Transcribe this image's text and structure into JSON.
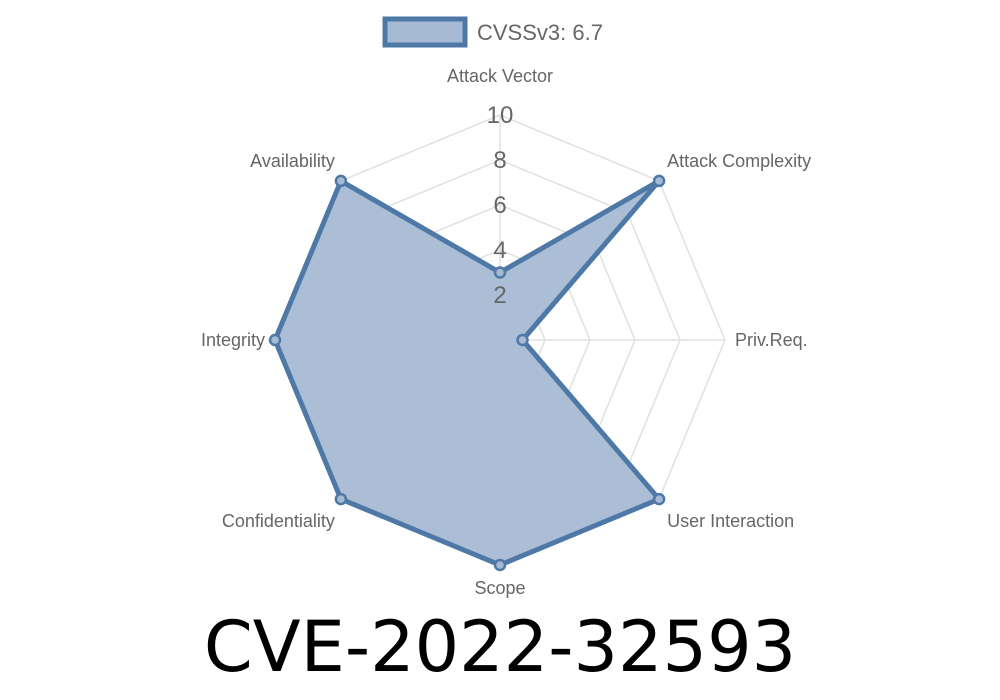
{
  "chart_data": {
    "type": "radar",
    "legend": {
      "label": "CVSSv3: 6.7",
      "position": "top"
    },
    "axes": [
      "Attack Vector",
      "Attack Complexity",
      "Priv.Req.",
      "User Interaction",
      "Scope",
      "Confidentiality",
      "Integrity",
      "Availability"
    ],
    "series": [
      {
        "name": "CVSSv3: 6.7",
        "values": [
          3,
          10,
          1,
          10,
          10,
          10,
          10,
          10
        ]
      }
    ],
    "range": [
      0,
      10
    ],
    "ticks": [
      "2",
      "4",
      "6",
      "8",
      "10"
    ],
    "grid": true,
    "colors": {
      "line": "#4e79a7",
      "fill": "#a7bad4",
      "grid": "#e0e0e0",
      "text": "#666666"
    }
  },
  "title": "CVE-2022-32593"
}
